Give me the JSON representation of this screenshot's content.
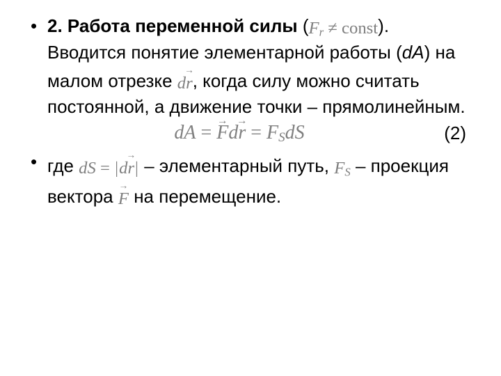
{
  "colors": {
    "text": "#000000",
    "math": "#7f7f7f",
    "background": "#ffffff"
  },
  "typography": {
    "body_family": "Arial",
    "math_family": "Times New Roman",
    "body_fontsize_pt": 20,
    "line_height": 1.35
  },
  "bullet1": {
    "lead_bold": "2. Работа переменной силы",
    "open_paren": " (",
    "close_paren": ").",
    "cond_Fr": "F",
    "cond_sub": "r",
    "cond_ne": " ≠ ",
    "cond_const": "const",
    "p1a": "Вводится понятие элементарной работы (",
    "dA": "dA",
    "p1b": ") на малом отрезке  ",
    "dr_d": "d",
    "dr_r": "r",
    "p1c": ", когда силу можно считать постоянной, а движение точки – прямолинейным."
  },
  "formula": {
    "dA": "dA",
    "eq": " = ",
    "F": "F",
    "d": "d",
    "r": "r",
    "Fs_F": "F",
    "Fs_sub": "S",
    "dS": "dS",
    "num": "(2)"
  },
  "bullet2": {
    "p_a": "где ",
    "ds_dS": "dS",
    "eq": " = ",
    "abs_d": "d",
    "abs_r": "r",
    "p_b": " – элементарный путь,  ",
    "Fs_F": "F",
    "Fs_sub": "S",
    "p_c": " – проекция вектора  ",
    "F": "F",
    "p_d": "  на перемещение."
  }
}
